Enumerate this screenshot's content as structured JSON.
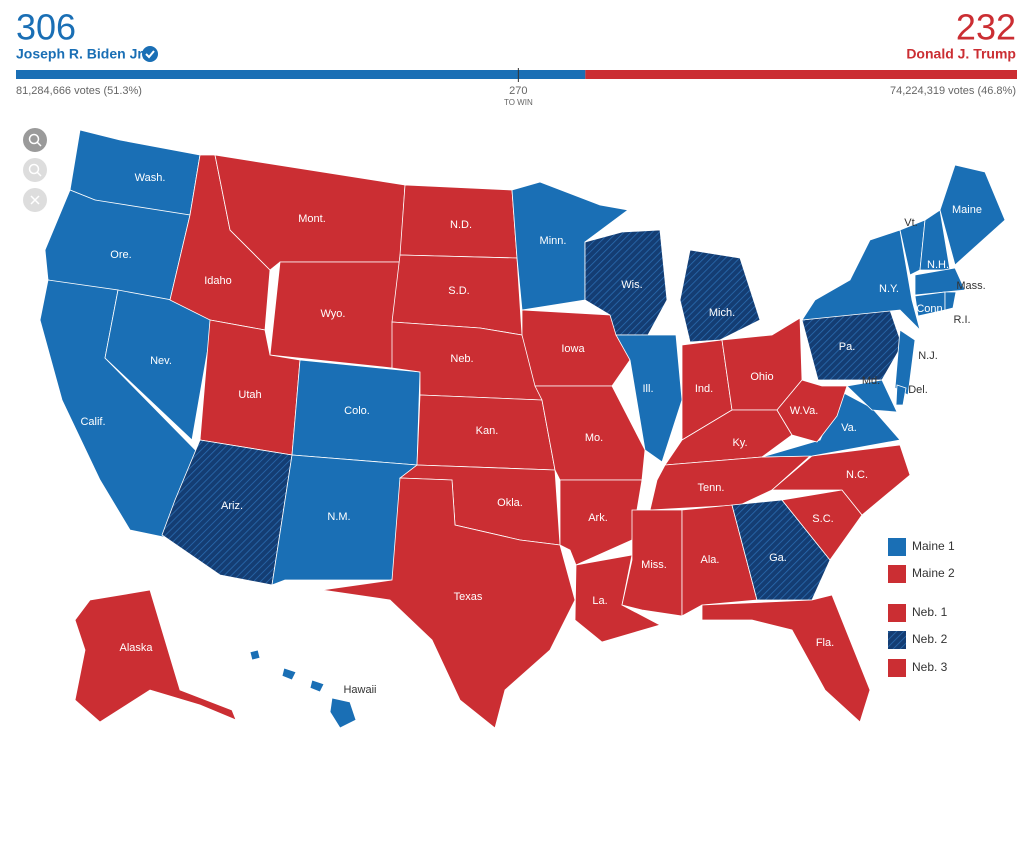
{
  "header": {
    "candidates": [
      {
        "electoral_votes": 306,
        "name": "Joseph R. Biden Jr.",
        "votes": "81,284,666 votes (51.3%)",
        "color": "#1a6fb5"
      },
      {
        "electoral_votes": 232,
        "name": "Donald J. Trump",
        "votes": "74,224,319 votes (46.8%)",
        "color": "#cb2e33"
      }
    ],
    "threshold": 270,
    "threshold_label": "TO WIN"
  },
  "map": {
    "hatch_color": "#143d73",
    "states": [
      {
        "label": "Wash.",
        "color": "#1a6fb5",
        "hatched": false
      },
      {
        "label": "Ore.",
        "color": "#1a6fb5",
        "hatched": false
      },
      {
        "label": "Calif.",
        "color": "#1a6fb5",
        "hatched": false
      },
      {
        "label": "Nev.",
        "color": "#1a6fb5",
        "hatched": false
      },
      {
        "label": "Idaho",
        "color": "#cb2e33",
        "hatched": false
      },
      {
        "label": "Mont.",
        "color": "#cb2e33",
        "hatched": false
      },
      {
        "label": "Wyo.",
        "color": "#cb2e33",
        "hatched": false
      },
      {
        "label": "Utah",
        "color": "#cb2e33",
        "hatched": false
      },
      {
        "label": "Ariz.",
        "color": "#143d73",
        "hatched": true
      },
      {
        "label": "Colo.",
        "color": "#1a6fb5",
        "hatched": false
      },
      {
        "label": "N.M.",
        "color": "#1a6fb5",
        "hatched": false
      },
      {
        "label": "N.D.",
        "color": "#cb2e33",
        "hatched": false
      },
      {
        "label": "S.D.",
        "color": "#cb2e33",
        "hatched": false
      },
      {
        "label": "Neb.",
        "color": "#cb2e33",
        "hatched": false
      },
      {
        "label": "Kan.",
        "color": "#cb2e33",
        "hatched": false
      },
      {
        "label": "Okla.",
        "color": "#cb2e33",
        "hatched": false
      },
      {
        "label": "Texas",
        "color": "#cb2e33",
        "hatched": false
      },
      {
        "label": "Minn.",
        "color": "#1a6fb5",
        "hatched": false
      },
      {
        "label": "Iowa",
        "color": "#cb2e33",
        "hatched": false
      },
      {
        "label": "Mo.",
        "color": "#cb2e33",
        "hatched": false
      },
      {
        "label": "Ark.",
        "color": "#cb2e33",
        "hatched": false
      },
      {
        "label": "La.",
        "color": "#cb2e33",
        "hatched": false
      },
      {
        "label": "Wis.",
        "color": "#143d73",
        "hatched": true
      },
      {
        "label": "Ill.",
        "color": "#1a6fb5",
        "hatched": false
      },
      {
        "label": "Mich.",
        "color": "#143d73",
        "hatched": true
      },
      {
        "label": "Ind.",
        "color": "#cb2e33",
        "hatched": false
      },
      {
        "label": "Ohio",
        "color": "#cb2e33",
        "hatched": false
      },
      {
        "label": "Ky.",
        "color": "#cb2e33",
        "hatched": false
      },
      {
        "label": "Tenn.",
        "color": "#cb2e33",
        "hatched": false
      },
      {
        "label": "Miss.",
        "color": "#cb2e33",
        "hatched": false
      },
      {
        "label": "Ala.",
        "color": "#cb2e33",
        "hatched": false
      },
      {
        "label": "Ga.",
        "color": "#143d73",
        "hatched": true
      },
      {
        "label": "Fla.",
        "color": "#cb2e33",
        "hatched": false
      },
      {
        "label": "S.C.",
        "color": "#cb2e33",
        "hatched": false
      },
      {
        "label": "N.C.",
        "color": "#cb2e33",
        "hatched": false
      },
      {
        "label": "Va.",
        "color": "#1a6fb5",
        "hatched": false
      },
      {
        "label": "W.Va.",
        "color": "#cb2e33",
        "hatched": false
      },
      {
        "label": "Pa.",
        "color": "#143d73",
        "hatched": true
      },
      {
        "label": "N.Y.",
        "color": "#1a6fb5",
        "hatched": false
      },
      {
        "label": "Md.",
        "color": "#1a6fb5",
        "hatched": false
      },
      {
        "label": "N.J.",
        "color": "#1a6fb5",
        "hatched": false
      },
      {
        "label": "Del.",
        "color": "#1a6fb5",
        "hatched": false
      },
      {
        "label": "Vt.",
        "color": "#1a6fb5",
        "hatched": false
      },
      {
        "label": "N.H.",
        "color": "#1a6fb5",
        "hatched": false
      },
      {
        "label": "Maine",
        "color": "#1a6fb5",
        "hatched": false
      },
      {
        "label": "Mass.",
        "color": "#1a6fb5",
        "hatched": false
      },
      {
        "label": "Conn.",
        "color": "#1a6fb5",
        "hatched": false
      },
      {
        "label": "R.I.",
        "color": "#1a6fb5",
        "hatched": false
      },
      {
        "label": "Alaska",
        "color": "#cb2e33",
        "hatched": false
      },
      {
        "label": "Hawaii",
        "color": "#1a6fb5",
        "hatched": false
      }
    ]
  },
  "legend": [
    {
      "label": "Maine 1",
      "color": "#1a6fb5",
      "hatched": false
    },
    {
      "label": "Maine 2",
      "color": "#cb2e33",
      "hatched": false
    },
    {
      "label": "Neb. 1",
      "color": "#cb2e33",
      "hatched": false
    },
    {
      "label": "Neb. 2",
      "color": "#143d73",
      "hatched": true
    },
    {
      "label": "Neb. 3",
      "color": "#cb2e33",
      "hatched": false
    }
  ]
}
